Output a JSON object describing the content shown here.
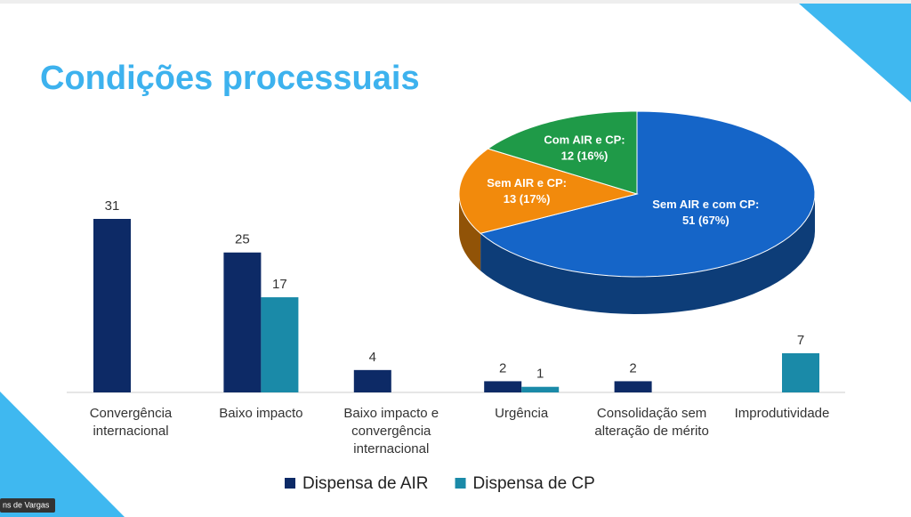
{
  "title": "Condições processuais",
  "participant_tag": "ns de Vargas",
  "chart_data": [
    {
      "type": "bar",
      "categories": [
        "Convergência internacional",
        "Baixo impacto",
        "Baixo impacto e convergência internacional",
        "Urgência",
        "Consolidação sem alteração de mérito",
        "Improdutividade"
      ],
      "series": [
        {
          "name": "Dispensa de AIR",
          "color": "#0d2a66",
          "values": [
            31,
            25,
            4,
            2,
            2,
            null
          ]
        },
        {
          "name": "Dispensa de CP",
          "color": "#1a8aa8",
          "values": [
            null,
            17,
            null,
            1,
            null,
            7
          ]
        }
      ],
      "legend": "bottom"
    },
    {
      "type": "pie3d",
      "categories": [
        "Sem AIR e com CP:",
        "Sem AIR e CP:",
        "Com AIR e CP:"
      ],
      "values": [
        51,
        13,
        12
      ],
      "value_labels": [
        "51 (67%)",
        "13 (17%)",
        "12 (16%)"
      ],
      "colors": [
        "#1565c8",
        "#f28a0c",
        "#1f9a48"
      ]
    }
  ]
}
